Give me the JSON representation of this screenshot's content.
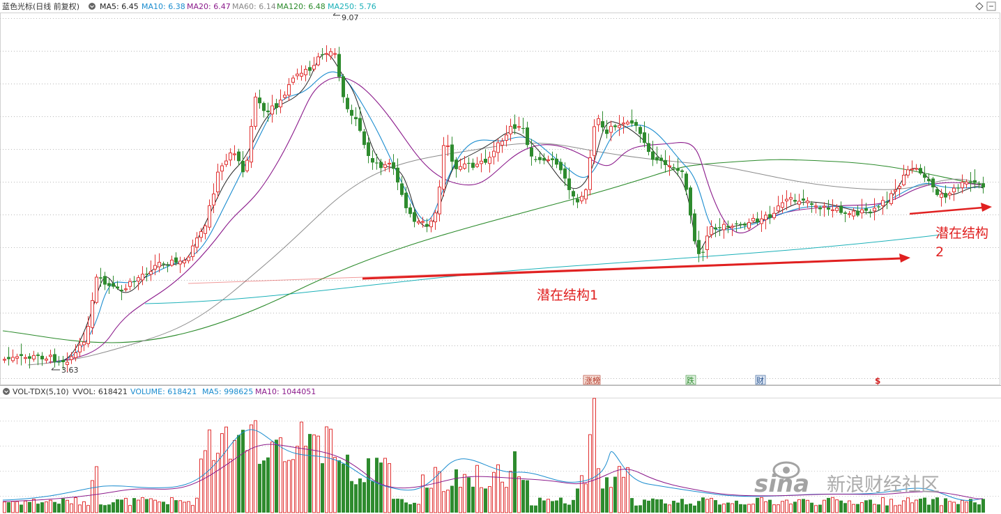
{
  "header": {
    "stock_title": "蓝色光标(日线 前复权)",
    "ma": [
      {
        "label": "MA5: 6.45",
        "color": "#222222"
      },
      {
        "label": "MA10: 6.38",
        "color": "#1a8ccf"
      },
      {
        "label": "MA20: 6.47",
        "color": "#8b1a8b"
      },
      {
        "label": "MA60: 6.14",
        "color": "#888888"
      },
      {
        "label": "MA120: 6.48",
        "color": "#2a8a2a"
      },
      {
        "label": "MA250: 5.76",
        "color": "#1ab0b8"
      }
    ]
  },
  "annotations": {
    "high_label": "9.07",
    "low_label": "3.63",
    "structure1": "潜在结构1",
    "structure2_line1": "潜在结构",
    "structure2_line2": "2",
    "event_tags": [
      "涨榜",
      "跌",
      "财",
      "$"
    ]
  },
  "volume_header": {
    "title": "VOL-TDX(5,10)",
    "vvol": "VVOL: 618421",
    "volume": "VOLUME: 618421",
    "ma5": "MA5: 998625",
    "ma10": "MA10: 1044051"
  },
  "watermark": {
    "logo": "sina",
    "text": "新浪财经社区"
  },
  "colors": {
    "up": "#e03030",
    "down": "#2e8b2e",
    "arrow": "#e02020"
  },
  "chart_data": [
    {
      "type": "candlestick",
      "title": "蓝色光标(日线 前复权)",
      "xlabel": "",
      "ylabel": "",
      "ylim": [
        3.4,
        9.3
      ],
      "grid": true,
      "summary": {
        "high": 9.07,
        "low": 3.63
      },
      "series": [
        {
          "name": "MA5",
          "value": 6.45
        },
        {
          "name": "MA10",
          "value": 6.38
        },
        {
          "name": "MA20",
          "value": 6.47
        },
        {
          "name": "MA60",
          "value": 6.14
        },
        {
          "name": "MA120",
          "value": 6.48
        },
        {
          "name": "MA250",
          "value": 5.76
        }
      ],
      "annotations": [
        "潜在结构1",
        "潜在结构 2"
      ]
    },
    {
      "type": "bar",
      "title": "VOL-TDX(5,10)",
      "series": [
        {
          "name": "VVOL",
          "value": 618421
        },
        {
          "name": "VOLUME",
          "value": 618421
        },
        {
          "name": "MA5",
          "value": 998625
        },
        {
          "name": "MA10",
          "value": 1044051
        }
      ]
    }
  ]
}
